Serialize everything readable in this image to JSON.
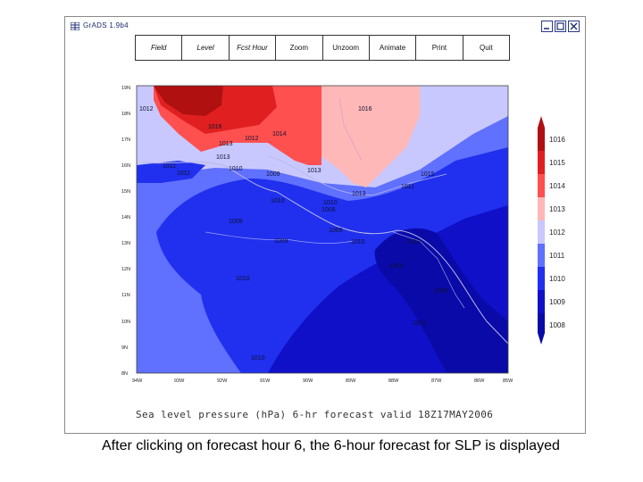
{
  "window": {
    "title": "GrADS 1.9b4",
    "icon": "grid-icon"
  },
  "toolbar": {
    "buttons": [
      "Field",
      "Level",
      "Fcst Hour",
      "Zoom",
      "Unzoom",
      "Animate",
      "Print",
      "Quit"
    ]
  },
  "map": {
    "lat_ticks": [
      "19N",
      "18N",
      "17N",
      "16N",
      "15N",
      "14N",
      "13N",
      "12N",
      "11N",
      "10N",
      "9N",
      "8N"
    ],
    "lon_ticks": [
      "94W",
      "93W",
      "92W",
      "91W",
      "90W",
      "89W",
      "88W",
      "87W",
      "86W",
      "85W"
    ],
    "contour_labels": [
      "1012",
      "1016",
      "1014",
      "1013",
      "1012",
      "1013",
      "1011",
      "1011",
      "1010",
      "1009",
      "1013",
      "1016",
      "1013",
      "1015",
      "1011",
      "1010",
      "1010",
      "1008",
      "1009",
      "1009",
      "1009",
      "1010",
      "1010",
      "1008",
      "1010",
      "1009",
      "1011"
    ],
    "colorbar_labels": [
      "1016",
      "1015",
      "1014",
      "1013",
      "1012",
      "1011",
      "1010",
      "1009",
      "1008"
    ],
    "colorbar_colors": [
      "#b01010",
      "#e02020",
      "#ff5050",
      "#ffb8b8",
      "#c8c8ff",
      "#6070ff",
      "#2030ee",
      "#1010c8",
      "#0a0aa8"
    ],
    "caption": "Sea level pressure (hPa) 6-hr forecast valid 18Z17MAY2006"
  },
  "slide": {
    "caption": "After clicking on forecast hour 6, the 6-hour forecast for SLP is displayed"
  }
}
